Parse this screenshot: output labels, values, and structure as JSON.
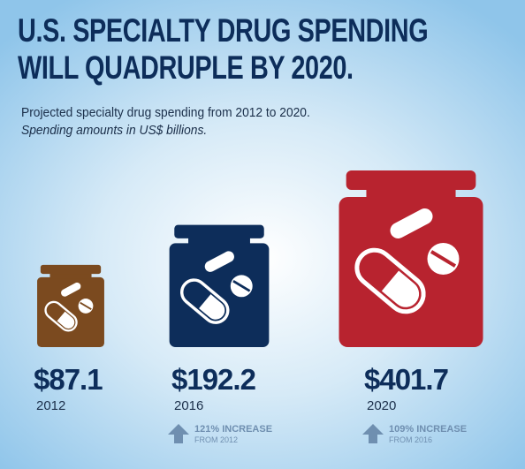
{
  "title_line1": "U.S. SPECIALTY DRUG SPENDING",
  "title_line2": "WILL QUADRUPLE BY 2020.",
  "subtitle_line1": "Projected specialty drug spending from 2012 to 2020.",
  "subtitle_line2": "Spending amounts in US$ billions.",
  "chart_data": {
    "type": "bar",
    "title": "U.S. SPECIALTY DRUG SPENDING WILL QUADRUPLE BY 2020.",
    "categories": [
      "2012",
      "2016",
      "2020"
    ],
    "values": [
      87.1,
      192.2,
      401.7
    ],
    "value_labels": [
      "$87.1",
      "$192.2",
      "$401.7"
    ],
    "colors": [
      "#7b4a1f",
      "#0d2d5a",
      "#b8232f"
    ],
    "annotations": [
      {
        "category": "2016",
        "text": "121% INCREASE",
        "subtext": "FROM 2012",
        "icon": "up-arrow-icon"
      },
      {
        "category": "2020",
        "text": "109% INCREASE",
        "subtext": "FROM 2016",
        "icon": "up-arrow-icon"
      }
    ]
  }
}
